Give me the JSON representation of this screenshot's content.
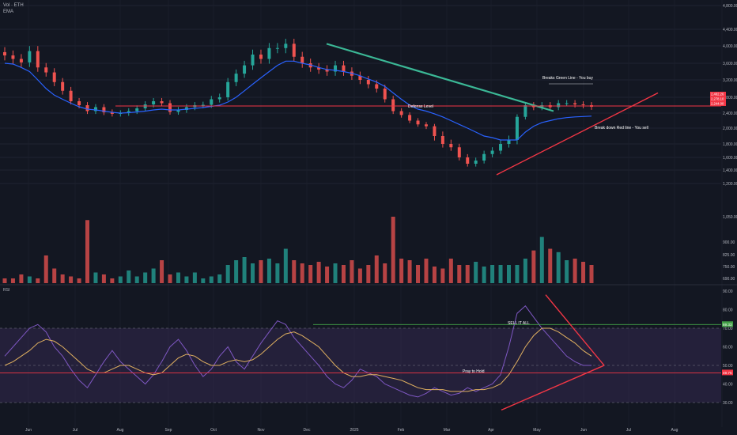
{
  "header": {
    "symbol": "Vol · ETH",
    "indicator": "EMA"
  },
  "colors": {
    "bg": "#131722",
    "up": "#26a69a",
    "down": "#ef5350",
    "ema": "#2962ff",
    "rsi": "#7e57c2",
    "rsi_ma": "#e0b060",
    "trend_green": "#3bb896",
    "trend_red": "#f23645",
    "band": "#3a2d58"
  },
  "chart_data": [
    {
      "type": "candlestick",
      "title": "",
      "y_axis_labels": [
        "4,800.00",
        "4,400.00",
        "4,000.00",
        "3,600.00",
        "3,200.00",
        "2,800.00",
        "2,400.00",
        "2,000.00",
        "1,800.00",
        "1,600.00",
        "1,400.00",
        "1,200.00",
        "1,050.00",
        "900.00",
        "825.00",
        "750.00",
        "690.00"
      ],
      "x_axis_labels": [
        "Jun",
        "Jul",
        "Aug",
        "Sep",
        "Oct",
        "Nov",
        "Dec",
        "2025",
        "Feb",
        "Mar",
        "Apr",
        "May",
        "Jun",
        "Jul",
        "Aug"
      ],
      "price_tags": [
        "2,482.26",
        "2,278.10",
        "2,244.00"
      ],
      "ema_label": "EMA",
      "annotations": {
        "breaks": "Breaks Green Line - You buy",
        "defense": "Defense Level",
        "breakdown": "Break down Red line - You sell"
      },
      "closes": [
        3780,
        3700,
        3620,
        3880,
        3500,
        3380,
        3150,
        2950,
        2700,
        2600,
        2450,
        2550,
        2420,
        2380,
        2400,
        2450,
        2520,
        2620,
        2700,
        2650,
        2430,
        2480,
        2550,
        2600,
        2610,
        2750,
        2800,
        3150,
        3350,
        3550,
        3800,
        3700,
        3950,
        3950,
        4050,
        3750,
        3600,
        3500,
        3450,
        3400,
        3550,
        3400,
        3300,
        3200,
        3100,
        3000,
        2750,
        2450,
        2350,
        2200,
        2100,
        2050,
        1900,
        1800,
        1750,
        1600,
        1500,
        1550,
        1650,
        1700,
        1800,
        1850,
        2300,
        2600,
        2550,
        2600,
        2550,
        2650,
        2650,
        2620,
        2600,
        2560
      ],
      "volumes": [
        640,
        680,
        710,
        700,
        690,
        820,
        740,
        710,
        700,
        690,
        1030,
        720,
        710,
        690,
        700,
        730,
        700,
        720,
        740,
        790,
        710,
        720,
        700,
        720,
        690,
        700,
        710,
        760,
        790,
        810,
        770,
        790,
        800,
        770,
        860,
        790,
        770,
        760,
        780,
        750,
        770,
        760,
        790,
        740,
        760,
        820,
        770,
        1100,
        800,
        790,
        760,
        800,
        750,
        740,
        800,
        760,
        760,
        780,
        750,
        760,
        760,
        760,
        760,
        800,
        850,
        930,
        860,
        840,
        790,
        800,
        780,
        760
      ],
      "ema_values": [
        3600,
        3580,
        3500,
        3400,
        3200,
        3000,
        2850,
        2750,
        2650,
        2560,
        2500,
        2480,
        2450,
        2420,
        2400,
        2410,
        2430,
        2450,
        2480,
        2500,
        2480,
        2480,
        2500,
        2520,
        2540,
        2570,
        2600,
        2680,
        2800,
        2950,
        3100,
        3250,
        3400,
        3550,
        3650,
        3650,
        3600,
        3560,
        3500,
        3450,
        3430,
        3400,
        3360,
        3300,
        3220,
        3150,
        3050,
        2900,
        2750,
        2600,
        2500,
        2450,
        2380,
        2300,
        2200,
        2100,
        2000,
        1950,
        1900,
        1880,
        1850,
        1850,
        1850,
        1950,
        2050,
        2150,
        2200,
        2250,
        2280,
        2300,
        2310,
        2320
      ]
    },
    {
      "type": "line",
      "title": "RSI",
      "y_axis_labels": [
        "90.00",
        "80.00",
        "70.00",
        "60.00",
        "50.00",
        "40.00",
        "30.00"
      ],
      "upper_band": 70,
      "lower_band": 30,
      "rsi_tag": "69.33",
      "rsi_tag2": "49.75",
      "annotations": {
        "sell": "SELL IT ALL",
        "pray": "Pray to Hold"
      },
      "rsi_values": [
        55,
        60,
        65,
        70,
        72,
        68,
        60,
        55,
        48,
        42,
        38,
        45,
        52,
        58,
        52,
        48,
        44,
        40,
        45,
        52,
        60,
        64,
        58,
        50,
        44,
        48,
        55,
        60,
        52,
        48,
        55,
        62,
        68,
        74,
        72,
        65,
        60,
        55,
        50,
        44,
        40,
        38,
        42,
        48,
        46,
        44,
        40,
        38,
        36,
        34,
        33,
        35,
        38,
        36,
        34,
        35,
        38,
        36,
        38,
        40,
        45,
        60,
        78,
        82,
        76,
        70,
        65,
        60,
        55,
        52,
        50,
        50
      ],
      "rsi_ma": [
        50,
        52,
        55,
        58,
        62,
        64,
        63,
        60,
        56,
        52,
        48,
        46,
        46,
        48,
        50,
        50,
        48,
        46,
        45,
        46,
        50,
        54,
        56,
        55,
        52,
        50,
        50,
        52,
        53,
        52,
        53,
        56,
        60,
        64,
        67,
        68,
        66,
        63,
        60,
        55,
        50,
        46,
        44,
        44,
        45,
        45,
        44,
        43,
        42,
        40,
        38,
        37,
        37,
        37,
        36,
        36,
        36,
        37,
        37,
        38,
        40,
        45,
        52,
        60,
        66,
        70,
        70,
        68,
        65,
        62,
        58,
        55
      ]
    }
  ]
}
